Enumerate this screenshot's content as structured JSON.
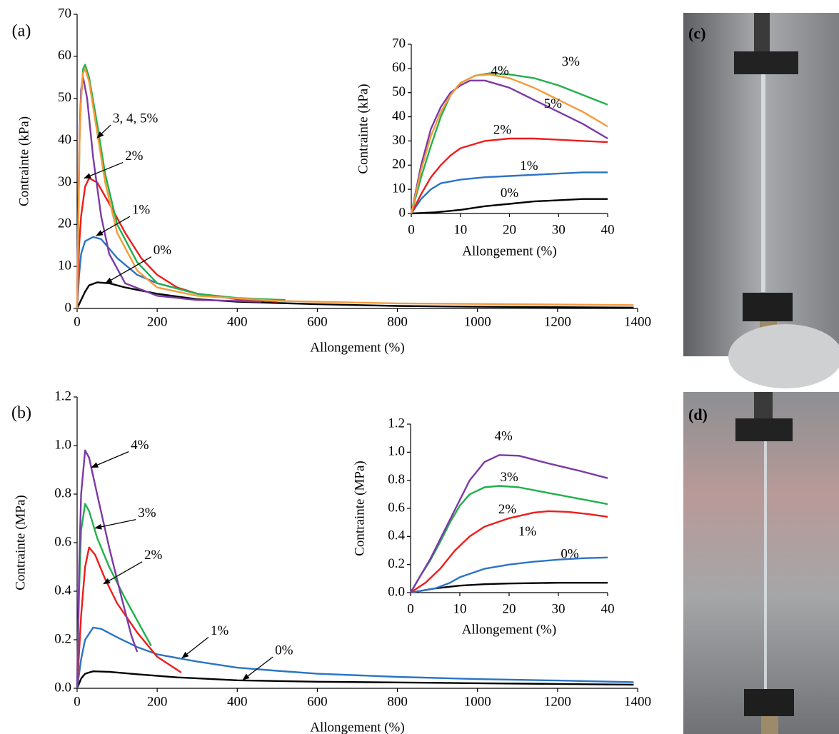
{
  "chart_data": [
    {
      "type": "line",
      "panel_label": "(a)",
      "x_label": "Allongement (%)",
      "y_label": "Contrainte (kPa)",
      "xlim": [
        0,
        1400
      ],
      "xticks": [
        0,
        200,
        400,
        600,
        800,
        1000,
        1200,
        1400
      ],
      "ylim": [
        0,
        70
      ],
      "yticks": [
        0,
        10,
        20,
        30,
        40,
        50,
        60,
        70
      ],
      "series": [
        {
          "color": "#000000",
          "x": [
            0,
            10,
            20,
            30,
            50,
            80,
            120,
            200,
            300,
            400,
            600,
            800,
            1000,
            1200,
            1390
          ],
          "values": [
            0,
            2,
            4,
            5.5,
            6.2,
            6,
            5,
            3.5,
            2.2,
            1.6,
            1,
            0.6,
            0.4,
            0.3,
            0.2
          ]
        },
        {
          "color": "#2a74c5",
          "x": [
            0,
            5,
            10,
            20,
            40,
            60,
            100,
            150,
            200,
            300,
            400,
            480
          ],
          "values": [
            0,
            8,
            13,
            16,
            17,
            16.5,
            12,
            8,
            6,
            3.5,
            2.3,
            1.8
          ]
        },
        {
          "color": "#ee1c1c",
          "x": [
            0,
            5,
            10,
            20,
            30,
            50,
            80,
            120,
            160,
            200,
            250,
            300,
            400,
            500
          ],
          "values": [
            0,
            15,
            22,
            29,
            31,
            30,
            25,
            18,
            12,
            8,
            5,
            3.5,
            2.2,
            1.6
          ]
        },
        {
          "color": "#22b04c",
          "x": [
            0,
            3,
            6,
            10,
            15,
            20,
            30,
            50,
            70,
            100,
            150,
            200,
            300,
            400,
            520
          ],
          "values": [
            0,
            20,
            40,
            50,
            57,
            58,
            55,
            44,
            32,
            20,
            11,
            6,
            3.5,
            2.5,
            2
          ]
        },
        {
          "color": "#7b3aa6",
          "x": [
            0,
            3,
            6,
            10,
            15,
            25,
            40,
            60,
            80,
            120,
            200,
            300,
            400,
            460
          ],
          "values": [
            0,
            25,
            42,
            52,
            55,
            50,
            36,
            22,
            13,
            6,
            3,
            2,
            1.8,
            1.6
          ]
        },
        {
          "color": "#f59a3b",
          "x": [
            0,
            3,
            6,
            10,
            15,
            20,
            30,
            50,
            70,
            100,
            150,
            200,
            300,
            500,
            800,
            1100,
            1390
          ],
          "values": [
            0,
            22,
            40,
            50,
            56,
            57,
            54,
            42,
            30,
            18,
            9,
            5,
            3,
            1.8,
            1.2,
            1,
            0.8
          ]
        }
      ],
      "annotations": [
        {
          "text": "3, 4, 5%",
          "x": 50,
          "y": 40.6
        },
        {
          "text": "2%",
          "x": 18,
          "y": 31
        },
        {
          "text": "1%",
          "x": 48,
          "y": 17.3
        },
        {
          "text": "0%",
          "x": 71,
          "y": 6
        }
      ]
    },
    {
      "type": "line",
      "x_label": "Allongement (%)",
      "y_label": "Contrainte (kPa)",
      "xlim": [
        0,
        40
      ],
      "xticks": [
        0,
        10,
        20,
        30,
        40
      ],
      "ylim": [
        0,
        70
      ],
      "yticks": [
        0,
        10,
        20,
        30,
        40,
        50,
        60,
        70
      ],
      "series": [
        {
          "name": "0%",
          "color": "#000000",
          "x": [
            0,
            5,
            10,
            15,
            20,
            25,
            30,
            35,
            40
          ],
          "values": [
            0,
            0.5,
            1.5,
            3,
            4,
            5,
            5.5,
            6,
            6
          ]
        },
        {
          "name": "1%",
          "color": "#2a74c5",
          "x": [
            0,
            2,
            4,
            6,
            10,
            15,
            20,
            25,
            30,
            35,
            40
          ],
          "values": [
            0,
            6,
            10,
            12.5,
            14,
            15,
            15.5,
            16,
            16.5,
            17,
            17
          ]
        },
        {
          "name": "2%",
          "color": "#ee1c1c",
          "x": [
            0,
            2,
            4,
            6,
            8,
            10,
            15,
            20,
            25,
            30,
            35,
            40
          ],
          "values": [
            0,
            8,
            15,
            20,
            24,
            27,
            30,
            31,
            31,
            30.5,
            30,
            29.5
          ]
        },
        {
          "name": "3%",
          "color": "#22b04c",
          "x": [
            0,
            2,
            4,
            6,
            8,
            10,
            13,
            16,
            20,
            25,
            30,
            35,
            40
          ],
          "values": [
            0,
            15,
            28,
            40,
            49,
            54,
            57,
            58,
            57.5,
            56,
            53,
            49,
            45
          ]
        },
        {
          "name": "4%",
          "color": "#7b3aa6",
          "x": [
            0,
            2,
            4,
            6,
            8,
            10,
            12,
            15,
            20,
            25,
            30,
            35,
            40
          ],
          "values": [
            0,
            20,
            35,
            44,
            50,
            53,
            55,
            55,
            52,
            47,
            42,
            37,
            31
          ]
        },
        {
          "name": "5%",
          "color": "#f59a3b",
          "x": [
            0,
            2,
            4,
            6,
            8,
            10,
            13,
            16,
            20,
            25,
            30,
            35,
            40
          ],
          "values": [
            0,
            18,
            32,
            42,
            49,
            54,
            57,
            57.5,
            56,
            52,
            47,
            42,
            36
          ]
        }
      ]
    },
    {
      "type": "line",
      "panel_label": "(b)",
      "x_label": "Allongement (%)",
      "y_label": "Contrainte (MPa)",
      "xlim": [
        0,
        1400
      ],
      "xticks": [
        0,
        200,
        400,
        600,
        800,
        1000,
        1200,
        1400
      ],
      "ylim": [
        0,
        1.2
      ],
      "yticks": [
        {
          "value": 0,
          "label": "0.0"
        },
        0.2,
        0.4,
        0.6,
        0.8,
        {
          "value": 1,
          "label": "1.0"
        },
        1.2
      ],
      "series": [
        {
          "color": "#000000",
          "x": [
            0,
            10,
            20,
            40,
            80,
            150,
            250,
            400,
            600,
            800,
            1000,
            1200,
            1390
          ],
          "values": [
            0,
            0.04,
            0.06,
            0.07,
            0.068,
            0.058,
            0.045,
            0.033,
            0.027,
            0.024,
            0.021,
            0.018,
            0.015
          ]
        },
        {
          "color": "#2a74c5",
          "x": [
            0,
            10,
            20,
            40,
            60,
            100,
            150,
            200,
            300,
            400,
            500,
            600,
            800,
            1000,
            1200,
            1390
          ],
          "values": [
            0,
            0.12,
            0.2,
            0.25,
            0.245,
            0.21,
            0.17,
            0.14,
            0.11,
            0.085,
            0.072,
            0.06,
            0.047,
            0.038,
            0.032,
            0.025
          ]
        },
        {
          "color": "#ee1c1c",
          "x": [
            0,
            10,
            20,
            30,
            45,
            70,
            100,
            150,
            200,
            260
          ],
          "values": [
            0,
            0.3,
            0.5,
            0.58,
            0.55,
            0.45,
            0.35,
            0.23,
            0.13,
            0.065
          ]
        },
        {
          "color": "#22b04c",
          "x": [
            0,
            5,
            10,
            20,
            30,
            50,
            80,
            120,
            160,
            185
          ],
          "values": [
            0,
            0.4,
            0.65,
            0.76,
            0.73,
            0.62,
            0.5,
            0.37,
            0.25,
            0.175
          ]
        },
        {
          "color": "#7b3aa6",
          "x": [
            0,
            5,
            10,
            20,
            30,
            50,
            80,
            110,
            135,
            150
          ],
          "values": [
            0,
            0.5,
            0.8,
            0.98,
            0.95,
            0.8,
            0.58,
            0.38,
            0.22,
            0.15
          ]
        }
      ],
      "annotations": [
        {
          "text": "4%",
          "x": 36,
          "y": 0.91
        },
        {
          "text": "3%",
          "x": 45,
          "y": 0.66
        },
        {
          "text": "2%",
          "x": 66,
          "y": 0.43
        },
        {
          "text": "1%",
          "x": 262,
          "y": 0.125
        },
        {
          "text": "0%",
          "x": 414,
          "y": 0.035
        }
      ]
    },
    {
      "type": "line",
      "x_label": "Allongement (%)",
      "y_label": "Contrainte (MPa)",
      "xlim": [
        0,
        40
      ],
      "xticks": [
        0,
        10,
        20,
        30,
        40
      ],
      "ylim": [
        0,
        1.2
      ],
      "yticks": [
        {
          "value": 0,
          "label": "0.0"
        },
        0.2,
        0.4,
        0.6,
        0.8,
        {
          "value": 1,
          "label": "1.0"
        },
        1.2
      ],
      "series": [
        {
          "name": "0%",
          "color": "#000000",
          "x": [
            0,
            5,
            10,
            15,
            20,
            30,
            40
          ],
          "values": [
            0,
            0.03,
            0.05,
            0.06,
            0.065,
            0.07,
            0.07
          ]
        },
        {
          "name": "1%",
          "color": "#2a74c5",
          "x": [
            0,
            5,
            8,
            10,
            15,
            20,
            25,
            30,
            35,
            40
          ],
          "values": [
            0,
            0.03,
            0.07,
            0.11,
            0.17,
            0.2,
            0.22,
            0.235,
            0.245,
            0.25
          ]
        },
        {
          "name": "2%",
          "color": "#ee1c1c",
          "x": [
            0,
            3,
            6,
            9,
            12,
            15,
            20,
            25,
            28,
            32,
            36,
            40
          ],
          "values": [
            0,
            0.07,
            0.17,
            0.3,
            0.4,
            0.47,
            0.53,
            0.57,
            0.58,
            0.575,
            0.56,
            0.54
          ]
        },
        {
          "name": "3%",
          "color": "#22b04c",
          "x": [
            0,
            2,
            4,
            6,
            8,
            10,
            12,
            15,
            18,
            22,
            28,
            34,
            40
          ],
          "values": [
            0,
            0.12,
            0.23,
            0.36,
            0.5,
            0.62,
            0.7,
            0.75,
            0.76,
            0.75,
            0.71,
            0.67,
            0.63
          ]
        },
        {
          "name": "4%",
          "color": "#7b3aa6",
          "x": [
            0,
            2,
            4,
            6,
            8,
            10,
            12,
            15,
            18,
            22,
            28,
            34,
            40
          ],
          "values": [
            0,
            0.12,
            0.24,
            0.38,
            0.52,
            0.66,
            0.8,
            0.93,
            0.98,
            0.975,
            0.92,
            0.87,
            0.815
          ]
        }
      ]
    }
  ],
  "photos": [
    {
      "label": "(c)"
    },
    {
      "label": "(d)"
    }
  ]
}
